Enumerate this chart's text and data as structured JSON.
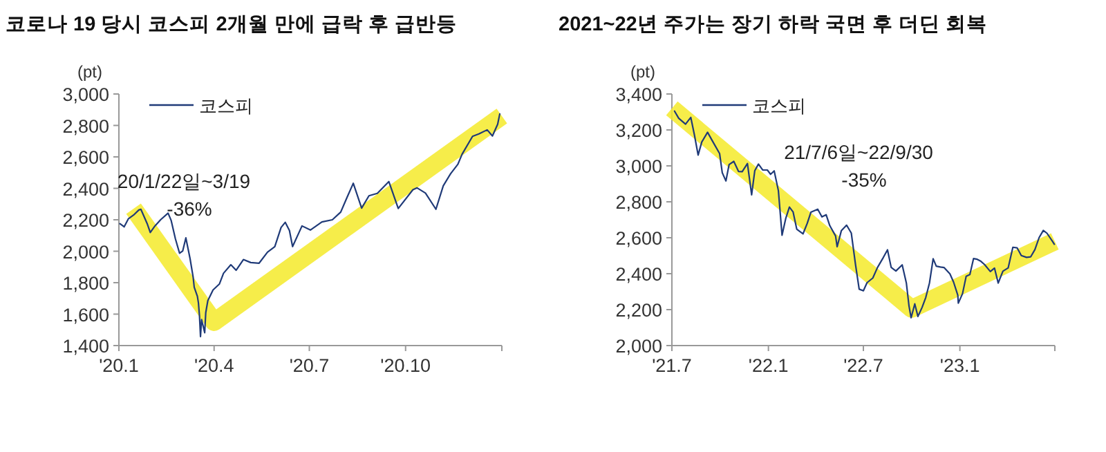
{
  "chart_data": [
    {
      "type": "line",
      "title": "코로나 19 당시 코스피 2개월 만에 급락 후 급반등",
      "ylabel": "(pt)",
      "xlim": [
        "2020-01-01",
        "2021-01-01"
      ],
      "xticks": [
        {
          "value": "2020-01-01",
          "label": "'20.1"
        },
        {
          "value": "2020-04-01",
          "label": "'20.4"
        },
        {
          "value": "2020-07-01",
          "label": "'20.7"
        },
        {
          "value": "2020-10-01",
          "label": "'20.10"
        },
        {
          "value": "2021-01-01",
          "label": null
        }
      ],
      "ylim": [
        1400,
        3000
      ],
      "yticks": [
        {
          "value": 1400,
          "label": "1,400"
        },
        {
          "value": 1600,
          "label": "1,600"
        },
        {
          "value": 1800,
          "label": "1,800"
        },
        {
          "value": 2000,
          "label": "2,000"
        },
        {
          "value": 2200,
          "label": "2,200"
        },
        {
          "value": 2400,
          "label": "2,400"
        },
        {
          "value": 2600,
          "label": "2,600"
        },
        {
          "value": 2800,
          "label": "2,800"
        },
        {
          "value": 3000,
          "label": "3,000"
        }
      ],
      "grid": false,
      "legend": "top left",
      "marker": "none",
      "line_style": "solid",
      "annotations": [
        "20/1/22일~3/19",
        "-36%"
      ],
      "series": [
        {
          "color": "#f5ea2a",
          "x": [
            "2020-01-15",
            "2020-04-01",
            "2021-01-01"
          ],
          "values": [
            2270,
            1550,
            2860
          ]
        },
        {
          "name": "코스피",
          "color": "#1f3a78",
          "x": [
            "2020-01-02",
            "2020-01-06",
            "2020-01-10",
            "2020-01-15",
            "2020-01-20",
            "2020-01-22",
            "2020-01-28",
            "2020-01-31",
            "2020-02-04",
            "2020-02-10",
            "2020-02-17",
            "2020-02-20",
            "2020-02-24",
            "2020-02-28",
            "2020-03-02",
            "2020-03-05",
            "2020-03-09",
            "2020-03-12",
            "2020-03-13",
            "2020-03-16",
            "2020-03-17",
            "2020-03-18",
            "2020-03-19",
            "2020-03-20",
            "2020-03-23",
            "2020-03-24",
            "2020-03-26",
            "2020-03-31",
            "2020-04-06",
            "2020-04-10",
            "2020-04-17",
            "2020-04-22",
            "2020-04-29",
            "2020-05-06",
            "2020-05-14",
            "2020-05-22",
            "2020-05-29",
            "2020-06-04",
            "2020-06-08",
            "2020-06-12",
            "2020-06-15",
            "2020-06-24",
            "2020-07-02",
            "2020-07-13",
            "2020-07-23",
            "2020-07-31",
            "2020-08-06",
            "2020-08-12",
            "2020-08-20",
            "2020-08-27",
            "2020-09-04",
            "2020-09-15",
            "2020-09-24",
            "2020-10-08",
            "2020-10-12",
            "2020-10-20",
            "2020-10-30",
            "2020-11-06",
            "2020-11-13",
            "2020-11-20",
            "2020-11-24",
            "2020-12-04",
            "2020-12-10",
            "2020-12-18",
            "2020-12-23",
            "2020-12-28",
            "2020-12-30"
          ],
          "values": [
            2175,
            2155,
            2206,
            2230,
            2262,
            2267,
            2176,
            2119,
            2157,
            2201,
            2242,
            2195,
            2079,
            1987,
            2002,
            2085,
            1954,
            1834,
            1771,
            1714,
            1672,
            1591,
            1457,
            1566,
            1482,
            1609,
            1686,
            1754,
            1791,
            1860,
            1914,
            1879,
            1947,
            1928,
            1924,
            1994,
            2029,
            2151,
            2184,
            2132,
            2030,
            2161,
            2135,
            2186,
            2200,
            2249,
            2342,
            2432,
            2274,
            2353,
            2368,
            2443,
            2272,
            2391,
            2403,
            2370,
            2267,
            2416,
            2493,
            2553,
            2617,
            2731,
            2746,
            2772,
            2733,
            2808,
            2873
          ]
        }
      ]
    },
    {
      "type": "line",
      "title": "2021~22년 주가는 장기 하락 국면 후 더딘 회복",
      "ylabel": "(pt)",
      "xlim": [
        "2021-07-01",
        "2023-07-01"
      ],
      "xticks": [
        {
          "value": "2021-07-01",
          "label": "'21.7"
        },
        {
          "value": "2022-01-01",
          "label": "'22.1"
        },
        {
          "value": "2022-07-01",
          "label": "'22.7"
        },
        {
          "value": "2023-01-01",
          "label": "'23.1"
        },
        {
          "value": "2023-07-01",
          "label": null
        }
      ],
      "ylim": [
        2000,
        3400
      ],
      "yticks": [
        {
          "value": 2000,
          "label": "2,000"
        },
        {
          "value": 2200,
          "label": "2,200"
        },
        {
          "value": 2400,
          "label": "2,400"
        },
        {
          "value": 2600,
          "label": "2,600"
        },
        {
          "value": 2800,
          "label": "2,800"
        },
        {
          "value": 3000,
          "label": "3,000"
        },
        {
          "value": 3200,
          "label": "3,200"
        },
        {
          "value": 3400,
          "label": "3,400"
        }
      ],
      "grid": false,
      "legend": "top left",
      "marker": "none",
      "line_style": "solid",
      "annotations": [
        "21/7/6일~22/9/30",
        "-35%"
      ],
      "series": [
        {
          "color": "#f5ea2a",
          "x": [
            "2021-07-01",
            "2022-10-01",
            "2023-07-01"
          ],
          "values": [
            3320,
            2205,
            2580
          ]
        },
        {
          "name": "코스피",
          "color": "#1f3a78",
          "x": [
            "2021-07-06",
            "2021-07-14",
            "2021-07-27",
            "2021-08-06",
            "2021-08-13",
            "2021-08-20",
            "2021-08-27",
            "2021-09-07",
            "2021-09-16",
            "2021-09-30",
            "2021-10-05",
            "2021-10-12",
            "2021-10-18",
            "2021-10-27",
            "2021-11-05",
            "2021-11-12",
            "2021-11-22",
            "2021-11-30",
            "2021-12-06",
            "2021-12-13",
            "2021-12-21",
            "2021-12-30",
            "2022-01-05",
            "2022-01-12",
            "2022-01-20",
            "2022-01-27",
            "2022-02-03",
            "2022-02-10",
            "2022-02-17",
            "2022-02-24",
            "2022-03-08",
            "2022-03-16",
            "2022-03-23",
            "2022-04-05",
            "2022-04-13",
            "2022-04-21",
            "2022-04-28",
            "2022-05-09",
            "2022-05-12",
            "2022-05-20",
            "2022-05-30",
            "2022-06-08",
            "2022-06-16",
            "2022-06-23",
            "2022-07-01",
            "2022-07-08",
            "2022-07-19",
            "2022-07-28",
            "2022-08-08",
            "2022-08-16",
            "2022-08-23",
            "2022-09-01",
            "2022-09-13",
            "2022-09-21",
            "2022-09-26",
            "2022-09-30",
            "2022-10-07",
            "2022-10-13",
            "2022-10-21",
            "2022-10-28",
            "2022-11-04",
            "2022-11-11",
            "2022-11-17",
            "2022-11-25",
            "2022-12-02",
            "2022-12-13",
            "2022-12-20",
            "2022-12-28",
            "2022-12-29",
            "2023-01-06",
            "2023-01-13",
            "2023-01-20",
            "2023-01-27",
            "2023-02-03",
            "2023-02-10",
            "2023-02-17",
            "2023-02-28",
            "2023-03-08",
            "2023-03-15",
            "2023-03-24",
            "2023-04-03",
            "2023-04-12",
            "2023-04-20",
            "2023-04-28",
            "2023-05-08",
            "2023-05-16",
            "2023-05-24",
            "2023-06-01",
            "2023-06-09",
            "2023-06-16",
            "2023-06-26",
            "2023-06-30"
          ],
          "values": [
            3305,
            3265,
            3232,
            3270,
            3171,
            3060,
            3133,
            3187,
            3140,
            3068,
            2962,
            2916,
            3007,
            3025,
            2969,
            2968,
            3013,
            2839,
            2973,
            3010,
            2977,
            2977,
            2953,
            2972,
            2862,
            2614,
            2707,
            2771,
            2744,
            2648,
            2622,
            2680,
            2742,
            2759,
            2716,
            2728,
            2667,
            2610,
            2550,
            2639,
            2670,
            2626,
            2451,
            2314,
            2305,
            2350,
            2376,
            2435,
            2490,
            2533,
            2435,
            2415,
            2449,
            2347,
            2220,
            2155,
            2232,
            2162,
            2213,
            2268,
            2348,
            2483,
            2442,
            2437,
            2434,
            2399,
            2353,
            2280,
            2236,
            2289,
            2386,
            2395,
            2484,
            2480,
            2469,
            2451,
            2412,
            2431,
            2348,
            2414,
            2432,
            2547,
            2544,
            2501,
            2491,
            2494,
            2534,
            2601,
            2641,
            2625,
            2582,
            2564
          ]
        }
      ]
    }
  ]
}
